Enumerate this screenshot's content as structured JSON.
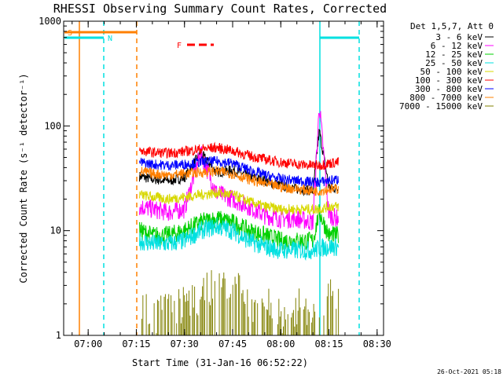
{
  "chart_data": {
    "type": "line",
    "title": "RHESSI Observing Summary Count Rates, Corrected",
    "xlabel": "Start Time (31-Jan-16 06:52:22)",
    "ylabel": "Corrected Count Rate (s⁻¹ detector⁻¹)",
    "yscale": "log",
    "xlim": [
      "06:52:22",
      "08:32:00"
    ],
    "ylim": [
      1,
      1000
    ],
    "x_ticks": [
      "07:00",
      "07:15",
      "07:30",
      "07:45",
      "08:00",
      "08:15",
      "08:30"
    ],
    "y_ticks": [
      "1",
      "10",
      "100",
      "1000"
    ],
    "legend_title": "Det 1,5,7, Att 0",
    "legend_placement": "right",
    "series": [
      {
        "name": "3 - 6 keV",
        "color": "#000000",
        "x": [
          "07:16",
          "07:20",
          "07:25",
          "07:30",
          "07:35",
          "07:40",
          "07:45",
          "07:50",
          "07:55",
          "08:00",
          "08:05",
          "08:10",
          "08:12",
          "08:15",
          "08:18"
        ],
        "y": [
          33,
          31,
          30,
          32,
          55,
          36,
          38,
          33,
          30,
          27,
          25,
          24,
          90,
          26,
          25
        ]
      },
      {
        "name": "6 - 12 keV",
        "color": "#ff00ff",
        "x": [
          "07:16",
          "07:20",
          "07:25",
          "07:30",
          "07:35",
          "07:40",
          "07:45",
          "07:50",
          "07:55",
          "08:00",
          "08:05",
          "08:10",
          "08:12",
          "08:15",
          "08:18"
        ],
        "y": [
          17,
          16,
          15,
          16,
          55,
          23,
          20,
          17,
          14,
          13,
          13,
          12,
          160,
          14,
          13
        ]
      },
      {
        "name": "12 - 25 keV",
        "color": "#00d000",
        "x": [
          "07:16",
          "07:20",
          "07:25",
          "07:30",
          "07:35",
          "07:40",
          "07:45",
          "07:50",
          "07:55",
          "08:00",
          "08:05",
          "08:10",
          "08:12",
          "08:15",
          "08:18"
        ],
        "y": [
          10,
          9,
          9,
          10,
          12,
          13,
          12,
          10,
          9,
          8,
          8,
          8,
          15,
          9,
          9
        ]
      },
      {
        "name": "25 - 50 keV",
        "color": "#00e0e0",
        "x": [
          "07:16",
          "07:20",
          "07:25",
          "07:30",
          "07:35",
          "07:40",
          "07:45",
          "07:50",
          "07:55",
          "08:00",
          "08:05",
          "08:10",
          "08:12",
          "08:15",
          "08:18"
        ],
        "y": [
          8,
          7.5,
          7.5,
          8,
          10,
          11,
          10,
          8,
          7,
          6.5,
          6.5,
          6.5,
          6.8,
          7,
          7
        ]
      },
      {
        "name": "50 - 100 keV",
        "color": "#d8d800",
        "x": [
          "07:16",
          "07:20",
          "07:25",
          "07:30",
          "07:35",
          "07:40",
          "07:45",
          "07:50",
          "07:55",
          "08:00",
          "08:05",
          "08:10",
          "08:12",
          "08:15",
          "08:18"
        ],
        "y": [
          22,
          21,
          20,
          21,
          22,
          23,
          22,
          19,
          17,
          16,
          16,
          16,
          16,
          17,
          17
        ]
      },
      {
        "name": "100 - 300 keV",
        "color": "#ff0000",
        "x": [
          "07:16",
          "07:20",
          "07:25",
          "07:30",
          "07:35",
          "07:40",
          "07:45",
          "07:50",
          "07:55",
          "08:00",
          "08:05",
          "08:10",
          "08:12",
          "08:15",
          "08:18"
        ],
        "y": [
          58,
          56,
          55,
          57,
          60,
          62,
          58,
          52,
          48,
          45,
          43,
          42,
          42,
          44,
          45
        ]
      },
      {
        "name": "300 - 800 keV",
        "color": "#0000ff",
        "x": [
          "07:16",
          "07:20",
          "07:25",
          "07:30",
          "07:35",
          "07:40",
          "07:45",
          "07:50",
          "07:55",
          "08:00",
          "08:05",
          "08:10",
          "08:12",
          "08:15",
          "08:18"
        ],
        "y": [
          45,
          43,
          42,
          43,
          45,
          46,
          44,
          38,
          34,
          31,
          30,
          29,
          29,
          30,
          31
        ]
      },
      {
        "name": "800 - 7000 keV",
        "color": "#ff8000",
        "x": [
          "07:16",
          "07:20",
          "07:25",
          "07:30",
          "07:35",
          "07:40",
          "07:45",
          "07:50",
          "07:55",
          "08:00",
          "08:05",
          "08:10",
          "08:12",
          "08:15",
          "08:18"
        ],
        "y": [
          37,
          35,
          34,
          35,
          36,
          37,
          35,
          31,
          28,
          26,
          25,
          24,
          24,
          25,
          25
        ]
      },
      {
        "name": "7000 - 15000 keV",
        "color": "#808000",
        "x": [
          "07:16",
          "07:20",
          "07:25",
          "07:30",
          "07:35",
          "07:40",
          "07:45",
          "07:50",
          "07:55",
          "08:00",
          "08:05",
          "08:10",
          "08:12",
          "08:15",
          "08:18"
        ],
        "y": [
          2,
          1.5,
          2,
          2,
          2.5,
          3,
          3,
          2,
          2,
          1.5,
          2,
          1.5,
          2,
          2.5,
          2
        ]
      }
    ],
    "annotations": {
      "top_markers": [
        "S",
        "N",
        "F"
      ]
    },
    "timestamp": "26-Oct-2021 05:18"
  }
}
